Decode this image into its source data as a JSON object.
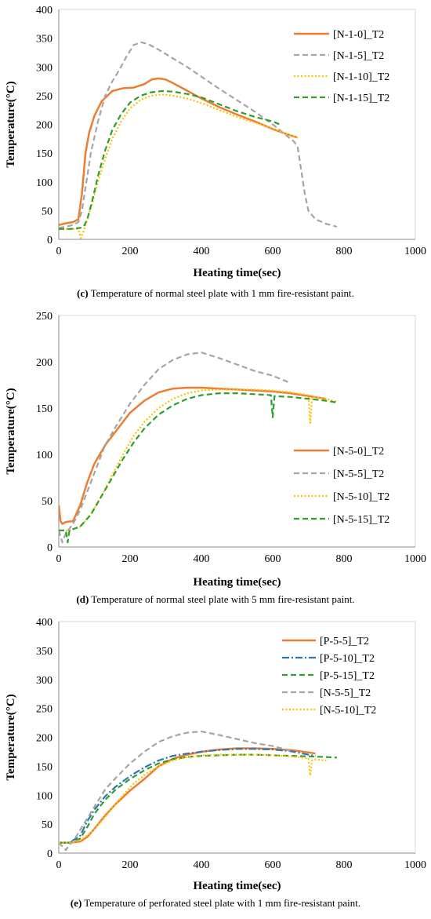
{
  "chart_data": [
    {
      "type": "line",
      "xlabel": "Heating time(sec)",
      "ylabel": "Temperature(°C)",
      "xlim": [
        0,
        1000
      ],
      "ylim": [
        0,
        400
      ],
      "xticks": [
        0,
        200,
        400,
        600,
        800,
        1000
      ],
      "yticks": [
        0,
        50,
        100,
        150,
        200,
        250,
        300,
        350,
        400
      ],
      "legend_position": "top-right",
      "caption_letter": "(c)",
      "caption_text": " Temperature of normal steel plate with 1 mm fire-resistant paint.",
      "series": [
        {
          "name": "[N-1-0]_T2",
          "color": "#ed7d31",
          "style": "solid",
          "x": [
            0,
            20,
            40,
            55,
            65,
            75,
            85,
            100,
            120,
            150,
            180,
            210,
            240,
            260,
            280,
            300,
            320,
            350,
            400,
            450,
            500,
            550,
            600,
            640,
            670
          ],
          "y": [
            25,
            28,
            30,
            35,
            80,
            150,
            185,
            215,
            240,
            258,
            263,
            264,
            270,
            278,
            280,
            278,
            272,
            262,
            245,
            230,
            217,
            205,
            192,
            183,
            177
          ]
        },
        {
          "name": "[N-1-5]_T2",
          "color": "#a5a5a5",
          "style": "dash",
          "x": [
            0,
            20,
            40,
            55,
            65,
            75,
            90,
            110,
            130,
            150,
            170,
            190,
            210,
            230,
            250,
            280,
            320,
            360,
            400,
            450,
            500,
            550,
            600,
            640,
            660,
            670,
            680,
            690,
            700,
            720,
            750,
            780
          ],
          "y": [
            20,
            22,
            25,
            30,
            50,
            90,
            150,
            205,
            250,
            275,
            295,
            318,
            338,
            343,
            340,
            330,
            315,
            300,
            283,
            262,
            242,
            222,
            200,
            180,
            170,
            160,
            120,
            80,
            50,
            35,
            27,
            22
          ]
        },
        {
          "name": "[N-1-10]_T2",
          "color": "#ffc000",
          "style": "dot",
          "x": [
            0,
            30,
            55,
            62,
            70,
            80,
            95,
            110,
            130,
            150,
            175,
            200,
            230,
            260,
            290,
            320,
            360,
            400,
            450,
            500,
            550,
            600,
            640,
            670
          ],
          "y": [
            18,
            18,
            18,
            2,
            15,
            35,
            65,
            100,
            140,
            175,
            205,
            228,
            243,
            250,
            252,
            250,
            245,
            237,
            225,
            213,
            203,
            193,
            183,
            177
          ]
        },
        {
          "name": "[N-1-15]_T2",
          "color": "#2e9e2e",
          "style": "dash",
          "x": [
            0,
            30,
            60,
            70,
            80,
            95,
            110,
            130,
            150,
            175,
            200,
            230,
            260,
            290,
            320,
            360,
            400,
            450,
            500,
            550,
            600,
            620
          ],
          "y": [
            18,
            18,
            20,
            22,
            35,
            70,
            110,
            155,
            190,
            218,
            238,
            250,
            256,
            258,
            257,
            253,
            247,
            235,
            223,
            213,
            205,
            200
          ]
        }
      ]
    },
    {
      "type": "line",
      "xlabel": "Heating time(sec)",
      "ylabel": "Temperature(°C)",
      "xlim": [
        0,
        1000
      ],
      "ylim": [
        0,
        250
      ],
      "xticks": [
        0,
        200,
        400,
        600,
        800,
        1000
      ],
      "yticks": [
        0,
        50,
        100,
        150,
        200,
        250
      ],
      "legend_position": "bottom-right",
      "caption_letter": "(d)",
      "caption_text": " Temperature of normal steel plate with 5 mm fire-resistant paint.",
      "series": [
        {
          "name": "[N-5-0]_T2",
          "color": "#ed7d31",
          "style": "solid",
          "x": [
            0,
            5,
            10,
            20,
            40,
            60,
            80,
            100,
            130,
            160,
            200,
            240,
            280,
            320,
            360,
            400,
            450,
            500,
            550,
            600,
            650,
            700,
            750
          ],
          "y": [
            45,
            28,
            25,
            27,
            28,
            45,
            70,
            90,
            110,
            125,
            145,
            158,
            167,
            171,
            172,
            172,
            171,
            170,
            169,
            168,
            166,
            163,
            160
          ]
        },
        {
          "name": "[N-5-5]_T2",
          "color": "#a5a5a5",
          "style": "dash",
          "x": [
            0,
            10,
            20,
            30,
            40,
            60,
            80,
            100,
            130,
            160,
            200,
            240,
            280,
            320,
            360,
            400,
            450,
            500,
            550,
            600,
            650
          ],
          "y": [
            18,
            5,
            15,
            20,
            25,
            40,
            60,
            80,
            110,
            130,
            155,
            175,
            192,
            202,
            208,
            210,
            204,
            197,
            190,
            185,
            177
          ]
        },
        {
          "name": "[N-5-10]_T2",
          "color": "#ffc000",
          "style": "dot",
          "x": [
            0,
            30,
            60,
            90,
            120,
            150,
            180,
            210,
            240,
            280,
            320,
            360,
            400,
            450,
            500,
            550,
            600,
            650,
            700,
            705,
            710,
            715,
            750,
            780
          ],
          "y": [
            18,
            18,
            22,
            35,
            55,
            78,
            100,
            120,
            135,
            150,
            160,
            166,
            169,
            170,
            170,
            170,
            169,
            167,
            164,
            134,
            160,
            162,
            160,
            157
          ]
        },
        {
          "name": "[N-5-15]_T2",
          "color": "#2e9e2e",
          "style": "dash",
          "x": [
            0,
            20,
            25,
            30,
            60,
            90,
            120,
            150,
            180,
            210,
            240,
            280,
            320,
            360,
            400,
            450,
            500,
            550,
            595,
            600,
            605,
            650,
            700,
            750,
            780
          ],
          "y": [
            18,
            18,
            5,
            18,
            22,
            35,
            55,
            75,
            95,
            113,
            128,
            143,
            153,
            160,
            164,
            166,
            166,
            165,
            164,
            140,
            163,
            162,
            160,
            158,
            156
          ]
        }
      ]
    },
    {
      "type": "line",
      "xlabel": "Heating time(sec)",
      "ylabel": "Temperature(°C)",
      "xlim": [
        0,
        1000
      ],
      "ylim": [
        0,
        400
      ],
      "xticks": [
        0,
        200,
        400,
        600,
        800,
        1000
      ],
      "yticks": [
        0,
        50,
        100,
        150,
        200,
        250,
        300,
        350,
        400
      ],
      "legend_position": "top-right",
      "caption_letter": "(e)",
      "caption_text": " Temperature of perforated steel plate with 1 mm fire-resistant paint.",
      "series": [
        {
          "name": "[P-5-5]_T2",
          "color": "#ed7d31",
          "style": "solid",
          "x": [
            0,
            30,
            60,
            80,
            100,
            130,
            160,
            200,
            240,
            280,
            320,
            360,
            400,
            450,
            500,
            550,
            600,
            650,
            700,
            720
          ],
          "y": [
            18,
            18,
            20,
            28,
            42,
            65,
            85,
            108,
            128,
            150,
            163,
            170,
            175,
            179,
            181,
            181,
            180,
            178,
            174,
            172
          ]
        },
        {
          "name": "[P-5-10]_T2",
          "color": "#2e75b6",
          "style": "dashdot",
          "x": [
            0,
            30,
            60,
            80,
            100,
            130,
            160,
            200,
            240,
            280,
            320,
            360,
            400,
            450,
            500,
            550,
            600,
            650,
            700,
            720
          ],
          "y": [
            18,
            18,
            30,
            55,
            75,
            98,
            115,
            133,
            148,
            160,
            168,
            172,
            175,
            178,
            180,
            180,
            179,
            176,
            170,
            168
          ]
        },
        {
          "name": "[P-5-15]_T2",
          "color": "#2e9e2e",
          "style": "dash",
          "x": [
            0,
            30,
            60,
            80,
            100,
            130,
            160,
            200,
            240,
            280,
            320,
            360,
            400,
            450,
            500,
            550,
            600,
            650,
            700,
            750,
            780
          ],
          "y": [
            18,
            18,
            25,
            45,
            68,
            92,
            110,
            128,
            143,
            155,
            162,
            166,
            168,
            169,
            170,
            170,
            169,
            168,
            167,
            166,
            165
          ]
        },
        {
          "name": "[N-5-5]_T2",
          "color": "#a5a5a5",
          "style": "dash",
          "x": [
            0,
            20,
            30,
            40,
            60,
            80,
            100,
            130,
            160,
            200,
            240,
            280,
            320,
            360,
            400,
            450,
            500,
            550,
            600,
            650
          ],
          "y": [
            18,
            5,
            15,
            20,
            40,
            60,
            80,
            110,
            130,
            155,
            175,
            192,
            202,
            208,
            210,
            204,
            197,
            190,
            185,
            177
          ]
        },
        {
          "name": "[N-5-10]_T2",
          "color": "#ffc000",
          "style": "dot",
          "x": [
            0,
            30,
            60,
            90,
            120,
            150,
            180,
            210,
            240,
            280,
            320,
            360,
            400,
            450,
            500,
            550,
            600,
            650,
            700,
            705,
            710,
            715,
            750
          ],
          "y": [
            18,
            18,
            22,
            35,
            55,
            78,
            100,
            120,
            135,
            150,
            160,
            166,
            169,
            170,
            170,
            170,
            169,
            167,
            164,
            134,
            160,
            162,
            160
          ]
        }
      ]
    }
  ]
}
